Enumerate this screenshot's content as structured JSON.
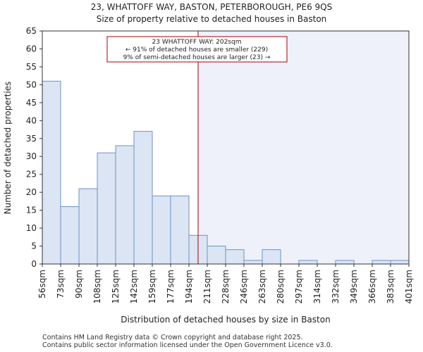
{
  "chart_data": {
    "type": "bar",
    "title_line1": "23, WHATTOFF WAY, BASTON, PETERBOROUGH, PE6 9QS",
    "title_line2": "Size of property relative to detached houses in Baston",
    "xlabel": "Distribution of detached houses by size in Baston",
    "ylabel": "Number of detached properties",
    "ylim": [
      0,
      65
    ],
    "yticks": [
      0,
      5,
      10,
      15,
      20,
      25,
      30,
      35,
      40,
      45,
      50,
      55,
      60,
      65
    ],
    "bin_edges": [
      "56sqm",
      "73sqm",
      "90sqm",
      "108sqm",
      "125sqm",
      "142sqm",
      "159sqm",
      "177sqm",
      "194sqm",
      "211sqm",
      "228sqm",
      "246sqm",
      "263sqm",
      "280sqm",
      "297sqm",
      "314sqm",
      "332sqm",
      "349sqm",
      "366sqm",
      "383sqm",
      "401sqm"
    ],
    "values": [
      51,
      16,
      21,
      31,
      33,
      37,
      19,
      19,
      8,
      5,
      4,
      1,
      4,
      0,
      1,
      0,
      1,
      0,
      1,
      1
    ],
    "marker_position_bins": 8.5,
    "annotation": {
      "line1": "23 WHATTOFF WAY: 202sqm",
      "line2": "← 91% of detached houses are smaller (229)",
      "line3": "9% of semi-detached houses are larger (23) →"
    },
    "colors": {
      "bar_fill": "#dbe5f4",
      "bar_stroke": "#6b93c9",
      "right_shade": "#eef1fa",
      "marker": "#aa0000"
    }
  },
  "footer": {
    "line1": "Contains HM Land Registry data © Crown copyright and database right 2025.",
    "line2": "Contains public sector information licensed under the Open Government Licence v3.0."
  }
}
